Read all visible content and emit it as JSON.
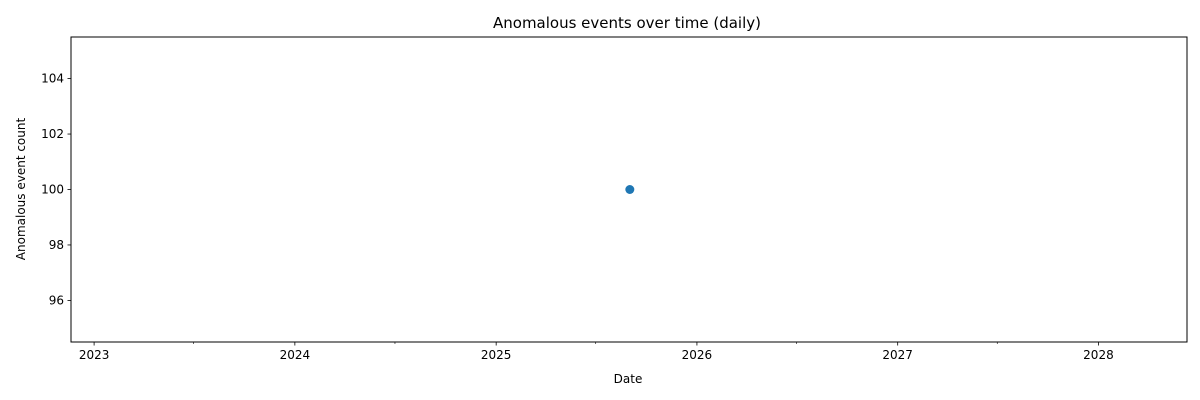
{
  "chart_data": {
    "type": "scatter",
    "title": "Anomalous events over time (daily)",
    "xlabel": "Date",
    "ylabel": "Anomalous event count",
    "x_axis_type": "date",
    "xlim": [
      "2022-11-20",
      "2028-06-10"
    ],
    "ylim": [
      94.5,
      105.5
    ],
    "grid": false,
    "x_major_ticks": [
      "2023-01-01",
      "2024-01-01",
      "2025-01-01",
      "2026-01-01",
      "2027-01-01",
      "2028-01-01"
    ],
    "x_tick_labels": [
      "2023",
      "2024",
      "2025",
      "2026",
      "2027",
      "2028"
    ],
    "x_minor_ticks": [
      "2023-07-01",
      "2024-07-01",
      "2025-07-01",
      "2026-07-01",
      "2027-07-01",
      "2028-07-01"
    ],
    "y_ticks": [
      96,
      98,
      100,
      102,
      104
    ],
    "y_tick_labels": [
      "96",
      "98",
      "100",
      "102",
      "104"
    ],
    "series": [
      {
        "color": "#1f77b4",
        "marker": "circle",
        "points": [
          {
            "x": "2025-09-01",
            "y": 100
          }
        ]
      }
    ]
  }
}
